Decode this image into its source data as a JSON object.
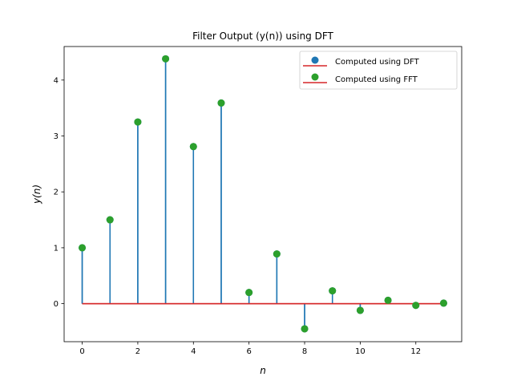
{
  "chart_data": {
    "type": "stem",
    "title": "Filter Output (y(n)) using DFT",
    "xlabel": "n",
    "ylabel": "y(n)",
    "xlim": [
      -0.65,
      13.65
    ],
    "ylim": [
      -0.68,
      4.6
    ],
    "x_ticks": [
      0,
      2,
      4,
      6,
      8,
      10,
      12
    ],
    "y_ticks": [
      0,
      1,
      2,
      3,
      4
    ],
    "grid": false,
    "legend_position": "upper right",
    "x": [
      0,
      1,
      2,
      3,
      4,
      5,
      6,
      7,
      8,
      9,
      10,
      11,
      12,
      13
    ],
    "series": [
      {
        "name": "Computed using DFT",
        "marker_color": "#1f77b4",
        "stem_color": "#1f77b4",
        "baseline_color": "#d62728",
        "values": [
          1.0,
          1.5,
          3.25,
          4.38,
          2.81,
          3.59,
          0.2,
          0.89,
          -0.45,
          0.23,
          -0.12,
          0.06,
          -0.03,
          0.01
        ]
      },
      {
        "name": "Computed using FFT",
        "marker_color": "#2ca02c",
        "stem_color": "#1f77b4",
        "baseline_color": "#d62728",
        "values": [
          1.0,
          1.5,
          3.25,
          4.38,
          2.81,
          3.59,
          0.2,
          0.89,
          -0.45,
          0.23,
          -0.12,
          0.06,
          -0.03,
          0.01
        ]
      }
    ]
  }
}
